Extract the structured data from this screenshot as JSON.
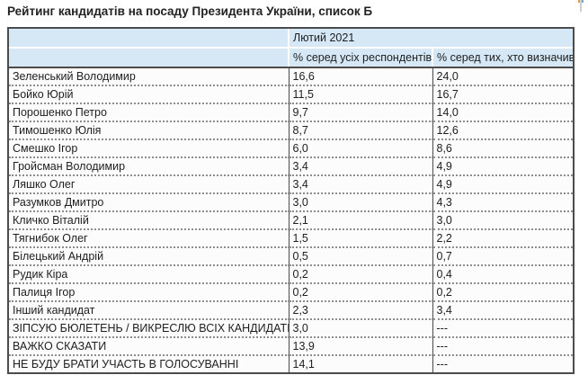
{
  "title": "Рейтинг кандидатів на посаду Президента України, список Б",
  "table": {
    "period_header": "Лютий 2021",
    "col_headers": {
      "all": "% серед усіх респондентів",
      "decided": "% серед тих, хто визначився"
    },
    "rows": [
      {
        "name": "Зеленський Володимир",
        "all": "16,6",
        "decided": "24,0"
      },
      {
        "name": "Бойко Юрій",
        "all": "11,5",
        "decided": "16,7"
      },
      {
        "name": "Порошенко Петро",
        "all": "9,7",
        "decided": "14,0"
      },
      {
        "name": "Тимошенко Юлія",
        "all": "8,7",
        "decided": "12,6"
      },
      {
        "name": "Смешко Ігор",
        "all": "6,0",
        "decided": "8,6"
      },
      {
        "name": "Гройсман Володимир",
        "all": "3,4",
        "decided": "4,9"
      },
      {
        "name": "Ляшко Олег",
        "all": "3,4",
        "decided": "4,9"
      },
      {
        "name": "Разумков Дмитро",
        "all": "3,0",
        "decided": "4,3"
      },
      {
        "name": "Кличко Віталій",
        "all": "2,1",
        "decided": "3,0"
      },
      {
        "name": "Тягнибок Олег",
        "all": "1,5",
        "decided": "2,2"
      },
      {
        "name": "Білецький Андрій",
        "all": "0,5",
        "decided": "0,7"
      },
      {
        "name": "Рудик Кіра",
        "all": "0,2",
        "decided": "0,4"
      },
      {
        "name": "Палиця Ігор",
        "all": "0,2",
        "decided": "0,2"
      },
      {
        "name": "Інший кандидат",
        "all": "2,3",
        "decided": "3,4"
      },
      {
        "name": "ЗІПСУЮ БЮЛЕТЕНЬ / ВИКРЕСЛЮ ВСІХ КАНДИДАТІВ",
        "all": "3,0",
        "decided": "---"
      },
      {
        "name": "ВАЖКО СКАЗАТИ",
        "all": "13,9",
        "decided": "---"
      },
      {
        "name": "НЕ БУДУ БРАТИ УЧАСТЬ В ГОЛОСУВАННІ",
        "all": "14,1",
        "decided": "---"
      }
    ]
  },
  "colors": {
    "header_background": "#d6e8f5",
    "table_border": "#4c4c4c",
    "row_divider_dotted": "#8c8c8c",
    "cell_background": "#fcfcfc",
    "text": "#1e1e1e"
  },
  "chart_data": {
    "type": "table",
    "title": "Рейтинг кандидатів на посаду Президента України, список Б",
    "period": "Лютий 2021",
    "categories": [
      "Зеленський Володимир",
      "Бойко Юрій",
      "Порошенко Петро",
      "Тимошенко Юлія",
      "Смешко Ігор",
      "Гройсман Володимир",
      "Ляшко Олег",
      "Разумков Дмитро",
      "Кличко Віталій",
      "Тягнибок Олег",
      "Білецький Андрій",
      "Рудик Кіра",
      "Палиця Ігор",
      "Інший кандидат",
      "ЗІПСУЮ БЮЛЕТЕНЬ / ВИКРЕСЛЮ ВСІХ КАНДИДАТІВ",
      "ВАЖКО СКАЗАТИ",
      "НЕ БУДУ БРАТИ УЧАСТЬ В ГОЛОСУВАННІ"
    ],
    "series": [
      {
        "name": "% серед усіх респондентів",
        "values": [
          16.6,
          11.5,
          9.7,
          8.7,
          6.0,
          3.4,
          3.4,
          3.0,
          2.1,
          1.5,
          0.5,
          0.2,
          0.2,
          2.3,
          3.0,
          13.9,
          14.1
        ]
      },
      {
        "name": "% серед тих, хто визначився",
        "values": [
          24.0,
          16.7,
          14.0,
          12.6,
          8.6,
          4.9,
          4.9,
          4.3,
          3.0,
          2.2,
          0.7,
          0.4,
          0.2,
          3.4,
          null,
          null,
          null
        ]
      }
    ]
  }
}
